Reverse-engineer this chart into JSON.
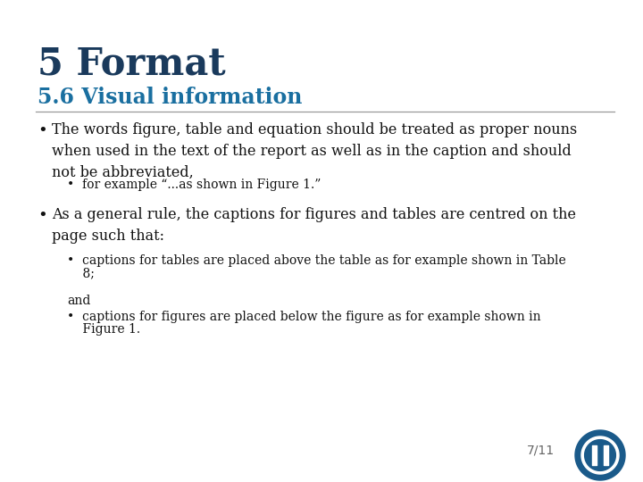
{
  "bg_color": "#ffffff",
  "title_text": "5 Format",
  "title_color": "#1a3a5c",
  "subtitle_text": "5.6 Visual information",
  "subtitle_color": "#1a6fa0",
  "line_color": "#999999",
  "page_number": "7/11",
  "page_num_color": "#666666",
  "body_color": "#111111",
  "bullet1_main": "The words figure, table and equation should be treated as proper nouns\nwhen used in the text of the report as well as in the caption and should\nnot be abbreviated,",
  "bullet1_sub": "•  for example “...as shown in Figure 1.”",
  "bullet2_main": "As a general rule, the captions for figures and tables are centred on the\npage such that:",
  "bullet2_sub1_line1": "•  captions for tables are placed above the table as for example shown in Table",
  "bullet2_sub1_line2": "    8;",
  "bullet2_and": "and",
  "bullet2_sub2_line1": "•  captions for figures are placed below the figure as for example shown in",
  "bullet2_sub2_line2": "    Figure 1."
}
